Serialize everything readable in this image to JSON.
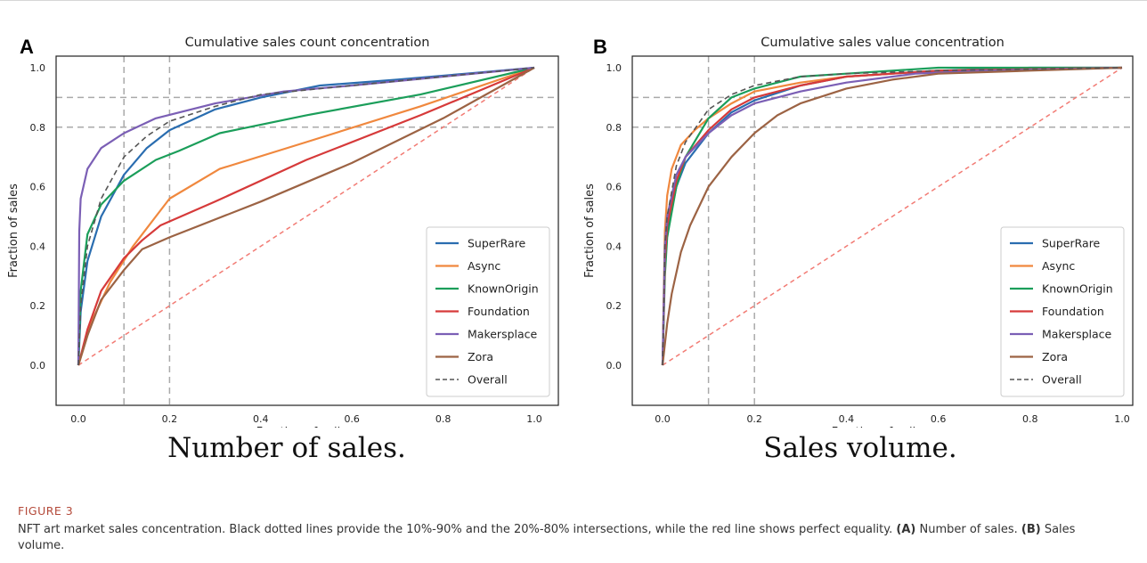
{
  "figure": {
    "label": "FIGURE 3",
    "caption_main": "NFT art market sales concentration. Black dotted lines provide the 10%-90% and the 20%-80% intersections, while the red line shows perfect equality.",
    "caption_a_tag": "(A)",
    "caption_a_text": "Number of sales.",
    "caption_b_tag": "(B)",
    "caption_b_text": "Sales volume."
  },
  "panels": [
    {
      "letter": "A",
      "subcaption": "Number of sales."
    },
    {
      "letter": "B",
      "subcaption": "Sales volume."
    }
  ],
  "chart_data": [
    {
      "type": "line",
      "title": "Cumulative sales count concentration",
      "xlabel": "Fraction of sellers",
      "ylabel": "Fraction of sales",
      "xlim": [
        0,
        1
      ],
      "ylim": [
        0,
        1
      ],
      "xticks": [
        "0.0",
        "0.2",
        "0.4",
        "0.6",
        "0.8",
        "1.0"
      ],
      "yticks": [
        "0.0",
        "0.2",
        "0.4",
        "0.6",
        "0.8",
        "1.0"
      ],
      "legend_position": "lower-right",
      "reference_lines": {
        "vertical": [
          0.1,
          0.2
        ],
        "horizontal": [
          0.8,
          0.9
        ],
        "color": "#aaaaaa"
      },
      "equality_line": {
        "color": "#f27b74"
      },
      "series": [
        {
          "name": "SuperRare",
          "color": "#2a6db0",
          "dashed": false,
          "points": [
            [
              0,
              0
            ],
            [
              0.005,
              0.18
            ],
            [
              0.02,
              0.35
            ],
            [
              0.05,
              0.5
            ],
            [
              0.1,
              0.64
            ],
            [
              0.15,
              0.73
            ],
            [
              0.2,
              0.79
            ],
            [
              0.3,
              0.86
            ],
            [
              0.4,
              0.9
            ],
            [
              0.53,
              0.94
            ],
            [
              0.7,
              0.96
            ],
            [
              0.85,
              0.98
            ],
            [
              1,
              1
            ]
          ]
        },
        {
          "name": "Async",
          "color": "#f0883e",
          "dashed": false,
          "points": [
            [
              0,
              0
            ],
            [
              0.03,
              0.15
            ],
            [
              0.07,
              0.28
            ],
            [
              0.12,
              0.4
            ],
            [
              0.17,
              0.5
            ],
            [
              0.2,
              0.56
            ],
            [
              0.31,
              0.66
            ],
            [
              0.5,
              0.75
            ],
            [
              0.75,
              0.87
            ],
            [
              1,
              1
            ]
          ]
        },
        {
          "name": "KnownOrigin",
          "color": "#1b9e5a",
          "dashed": false,
          "points": [
            [
              0,
              0
            ],
            [
              0.005,
              0.25
            ],
            [
              0.02,
              0.44
            ],
            [
              0.05,
              0.54
            ],
            [
              0.1,
              0.62
            ],
            [
              0.17,
              0.69
            ],
            [
              0.22,
              0.72
            ],
            [
              0.31,
              0.78
            ],
            [
              0.5,
              0.84
            ],
            [
              0.75,
              0.91
            ],
            [
              1,
              1
            ]
          ]
        },
        {
          "name": "Foundation",
          "color": "#d63a3a",
          "dashed": false,
          "points": [
            [
              0,
              0
            ],
            [
              0.02,
              0.12
            ],
            [
              0.05,
              0.25
            ],
            [
              0.1,
              0.36
            ],
            [
              0.14,
              0.42
            ],
            [
              0.18,
              0.47
            ],
            [
              0.3,
              0.55
            ],
            [
              0.5,
              0.69
            ],
            [
              0.75,
              0.84
            ],
            [
              1,
              1
            ]
          ]
        },
        {
          "name": "Makersplace",
          "color": "#7b5fb5",
          "dashed": false,
          "points": [
            [
              0,
              0
            ],
            [
              0.002,
              0.45
            ],
            [
              0.005,
              0.56
            ],
            [
              0.02,
              0.66
            ],
            [
              0.05,
              0.73
            ],
            [
              0.1,
              0.78
            ],
            [
              0.17,
              0.83
            ],
            [
              0.3,
              0.88
            ],
            [
              0.45,
              0.92
            ],
            [
              0.6,
              0.94
            ],
            [
              0.8,
              0.97
            ],
            [
              1,
              1
            ]
          ]
        },
        {
          "name": "Zora",
          "color": "#9c6344",
          "dashed": false,
          "points": [
            [
              0,
              0
            ],
            [
              0.02,
              0.1
            ],
            [
              0.05,
              0.22
            ],
            [
              0.1,
              0.32
            ],
            [
              0.14,
              0.39
            ],
            [
              0.2,
              0.43
            ],
            [
              0.4,
              0.55
            ],
            [
              0.6,
              0.68
            ],
            [
              0.8,
              0.83
            ],
            [
              1,
              1
            ]
          ]
        },
        {
          "name": "Overall",
          "color": "#555555",
          "dashed": true,
          "points": [
            [
              0,
              0
            ],
            [
              0.005,
              0.2
            ],
            [
              0.02,
              0.4
            ],
            [
              0.05,
              0.56
            ],
            [
              0.1,
              0.7
            ],
            [
              0.15,
              0.77
            ],
            [
              0.2,
              0.82
            ],
            [
              0.3,
              0.87
            ],
            [
              0.4,
              0.91
            ],
            [
              0.6,
              0.94
            ],
            [
              0.8,
              0.97
            ],
            [
              1,
              1
            ]
          ]
        }
      ]
    },
    {
      "type": "line",
      "title": "Cumulative sales value concentration",
      "xlabel": "Fraction of sellers",
      "ylabel": "Fraction of sales",
      "xlim": [
        0,
        1
      ],
      "ylim": [
        0,
        1
      ],
      "xticks": [
        "0.0",
        "0.2",
        "0.4",
        "0.6",
        "0.8",
        "1.0"
      ],
      "yticks": [
        "0.0",
        "0.2",
        "0.4",
        "0.6",
        "0.8",
        "1.0"
      ],
      "legend_position": "lower-right",
      "reference_lines": {
        "vertical": [
          0.1,
          0.2
        ],
        "horizontal": [
          0.8,
          0.9
        ],
        "color": "#aaaaaa"
      },
      "equality_line": {
        "color": "#f27b74"
      },
      "series": [
        {
          "name": "SuperRare",
          "color": "#2a6db0",
          "dashed": false,
          "points": [
            [
              0,
              0
            ],
            [
              0.005,
              0.35
            ],
            [
              0.01,
              0.45
            ],
            [
              0.03,
              0.6
            ],
            [
              0.05,
              0.68
            ],
            [
              0.1,
              0.78
            ],
            [
              0.15,
              0.85
            ],
            [
              0.2,
              0.89
            ],
            [
              0.3,
              0.94
            ],
            [
              0.4,
              0.97
            ],
            [
              0.6,
              0.99
            ],
            [
              0.8,
              1
            ],
            [
              1,
              1
            ]
          ]
        },
        {
          "name": "Async",
          "color": "#f0883e",
          "dashed": false,
          "points": [
            [
              0,
              0
            ],
            [
              0.005,
              0.45
            ],
            [
              0.01,
              0.57
            ],
            [
              0.02,
              0.66
            ],
            [
              0.04,
              0.74
            ],
            [
              0.07,
              0.79
            ],
            [
              0.1,
              0.83
            ],
            [
              0.15,
              0.88
            ],
            [
              0.2,
              0.92
            ],
            [
              0.3,
              0.95
            ],
            [
              0.4,
              0.97
            ],
            [
              0.6,
              0.99
            ],
            [
              1,
              1
            ]
          ]
        },
        {
          "name": "KnownOrigin",
          "color": "#1b9e5a",
          "dashed": false,
          "points": [
            [
              0,
              0
            ],
            [
              0.005,
              0.3
            ],
            [
              0.01,
              0.43
            ],
            [
              0.03,
              0.6
            ],
            [
              0.05,
              0.7
            ],
            [
              0.1,
              0.83
            ],
            [
              0.15,
              0.9
            ],
            [
              0.2,
              0.93
            ],
            [
              0.3,
              0.97
            ],
            [
              0.4,
              0.98
            ],
            [
              0.6,
              1
            ],
            [
              1,
              1
            ]
          ]
        },
        {
          "name": "Foundation",
          "color": "#d63a3a",
          "dashed": false,
          "points": [
            [
              0,
              0
            ],
            [
              0.005,
              0.35
            ],
            [
              0.01,
              0.47
            ],
            [
              0.03,
              0.62
            ],
            [
              0.05,
              0.7
            ],
            [
              0.1,
              0.79
            ],
            [
              0.15,
              0.86
            ],
            [
              0.2,
              0.9
            ],
            [
              0.3,
              0.94
            ],
            [
              0.4,
              0.97
            ],
            [
              0.6,
              0.99
            ],
            [
              1,
              1
            ]
          ]
        },
        {
          "name": "Makersplace",
          "color": "#7b5fb5",
          "dashed": false,
          "points": [
            [
              0,
              0
            ],
            [
              0.005,
              0.4
            ],
            [
              0.01,
              0.5
            ],
            [
              0.03,
              0.64
            ],
            [
              0.05,
              0.7
            ],
            [
              0.1,
              0.78
            ],
            [
              0.15,
              0.84
            ],
            [
              0.2,
              0.88
            ],
            [
              0.3,
              0.92
            ],
            [
              0.4,
              0.95
            ],
            [
              0.55,
              0.98
            ],
            [
              0.7,
              0.99
            ],
            [
              1,
              1
            ]
          ]
        },
        {
          "name": "Zora",
          "color": "#9c6344",
          "dashed": false,
          "points": [
            [
              0,
              0
            ],
            [
              0.01,
              0.14
            ],
            [
              0.02,
              0.24
            ],
            [
              0.04,
              0.38
            ],
            [
              0.06,
              0.47
            ],
            [
              0.1,
              0.6
            ],
            [
              0.15,
              0.7
            ],
            [
              0.2,
              0.78
            ],
            [
              0.25,
              0.84
            ],
            [
              0.3,
              0.88
            ],
            [
              0.4,
              0.93
            ],
            [
              0.5,
              0.96
            ],
            [
              0.6,
              0.98
            ],
            [
              0.8,
              0.99
            ],
            [
              1,
              1
            ]
          ]
        },
        {
          "name": "Overall",
          "color": "#555555",
          "dashed": true,
          "points": [
            [
              0,
              0
            ],
            [
              0.005,
              0.4
            ],
            [
              0.01,
              0.5
            ],
            [
              0.03,
              0.67
            ],
            [
              0.05,
              0.75
            ],
            [
              0.1,
              0.86
            ],
            [
              0.15,
              0.91
            ],
            [
              0.2,
              0.94
            ],
            [
              0.3,
              0.97
            ],
            [
              0.4,
              0.98
            ],
            [
              0.6,
              0.99
            ],
            [
              1,
              1
            ]
          ]
        }
      ]
    }
  ]
}
